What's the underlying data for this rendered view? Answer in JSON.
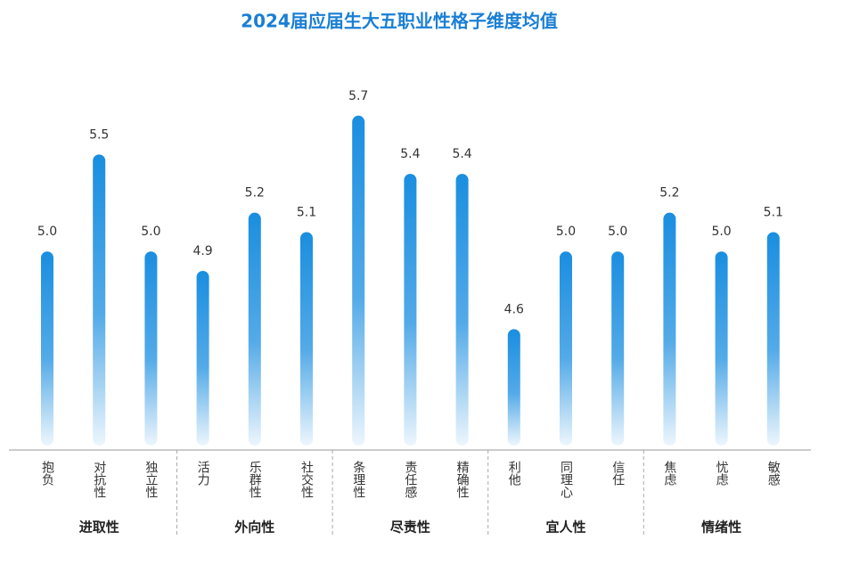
{
  "chart_data": {
    "type": "bar",
    "title": "2024届应届生大五职业性格子维度均值",
    "color": "#1a8ee0",
    "ylim": [
      4,
      5.8
    ],
    "groups": [
      {
        "name": "进取性",
        "categories": [
          "抱负",
          "对抗性",
          "独立性"
        ],
        "values": [
          5.0,
          5.5,
          5.0
        ],
        "value_labels": [
          "5.0",
          "5.5",
          "5.0"
        ]
      },
      {
        "name": "外向性",
        "categories": [
          "活力",
          "乐群性",
          "社交性"
        ],
        "values": [
          4.9,
          5.2,
          5.1
        ],
        "value_labels": [
          "4.9",
          "5.2",
          "5.1"
        ]
      },
      {
        "name": "尽责性",
        "categories": [
          "条理性",
          "责任感",
          "精确性"
        ],
        "values": [
          5.7,
          5.4,
          5.4
        ],
        "value_labels": [
          "5.7",
          "5.4",
          "5.4"
        ]
      },
      {
        "name": "宜人性",
        "categories": [
          "利他",
          "同理心",
          "信任"
        ],
        "values": [
          4.6,
          5.0,
          5.0
        ],
        "value_labels": [
          "4.6",
          "5.0",
          "5.0"
        ]
      },
      {
        "name": "情绪性",
        "categories": [
          "焦虑",
          "忧虑",
          "敏感"
        ],
        "values": [
          5.2,
          5.0,
          5.1
        ],
        "value_labels": [
          "5.2",
          "5.0",
          "5.1"
        ]
      }
    ]
  }
}
